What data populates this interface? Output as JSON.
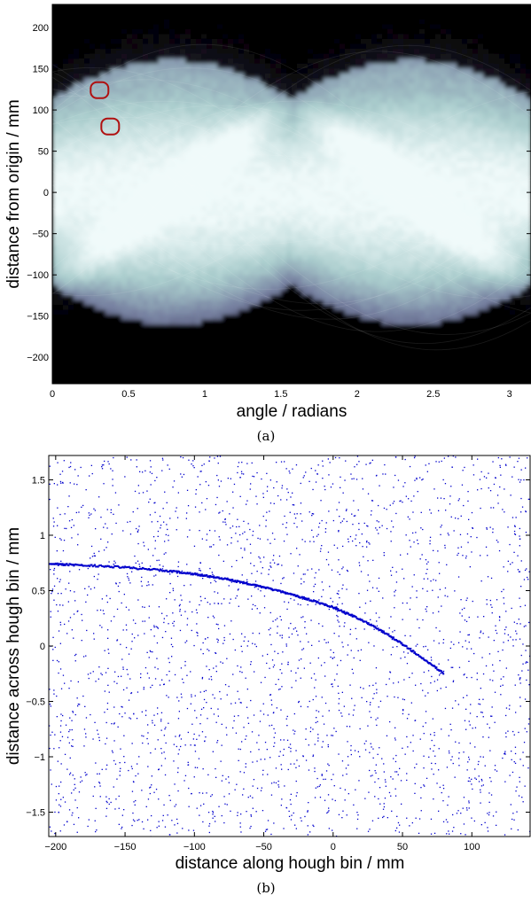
{
  "chart_data": [
    {
      "type": "heatmap",
      "title": "",
      "caption": "(a)",
      "xlabel": "angle / radians",
      "ylabel": "distance from origin / mm",
      "xlim": [
        0,
        3.1416
      ],
      "ylim": [
        -232,
        228
      ],
      "xticks": [
        0,
        0.5,
        1,
        1.5,
        2,
        2.5,
        3
      ],
      "xtick_labels": [
        "0",
        "0.5",
        "1",
        "1.5",
        "2",
        "2.5",
        "3"
      ],
      "yticks": [
        -200,
        -150,
        -100,
        -50,
        0,
        50,
        100,
        150,
        200
      ],
      "ytick_labels": [
        "−200",
        "−150",
        "−100",
        "−50",
        "0",
        "50",
        "100",
        "150",
        "200"
      ],
      "colormap": "bone",
      "grid": false,
      "sinusoid_amplitude": 160,
      "sinusoid_phase": 0.785,
      "highlighted_peaks": [
        {
          "x": 0.31,
          "y": 124
        },
        {
          "x": 0.38,
          "y": 80
        }
      ],
      "highlight_color": "#b01010"
    },
    {
      "type": "scatter",
      "title": "",
      "caption": "(b)",
      "xlabel": "distance along hough bin / mm",
      "ylabel": "distance across hough bin / mm",
      "xlim": [
        -205,
        142
      ],
      "ylim": [
        -1.72,
        1.72
      ],
      "xticks": [
        -200,
        -150,
        -100,
        -50,
        0,
        50,
        100
      ],
      "xtick_labels": [
        "−200",
        "−150",
        "−100",
        "−50",
        "0",
        "50",
        "100"
      ],
      "yticks": [
        -1.5,
        -1,
        -0.5,
        0,
        0.5,
        1,
        1.5
      ],
      "ytick_labels": [
        "−1.5",
        "−1",
        "−0.5",
        "0",
        "0.5",
        "1",
        "1.5"
      ],
      "point_color": "#0000cc",
      "grid": false,
      "series": [
        {
          "x": [
            -205,
            -180,
            -150,
            -120,
            -100,
            -80,
            -60,
            -40,
            -20,
            0,
            20,
            40,
            60,
            80
          ],
          "y": [
            0.74,
            0.73,
            0.71,
            0.68,
            0.65,
            0.61,
            0.56,
            0.5,
            0.43,
            0.35,
            0.24,
            0.1,
            -0.07,
            -0.25
          ]
        }
      ]
    }
  ]
}
